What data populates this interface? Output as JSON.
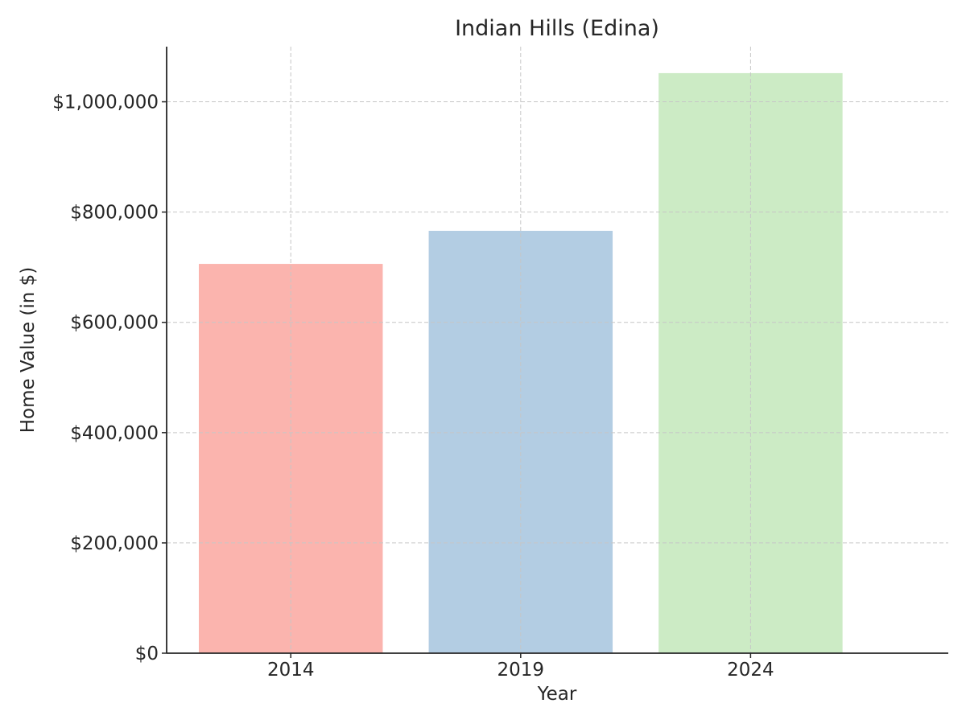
{
  "chart_data": {
    "type": "bar",
    "title": "Indian Hills (Edina)",
    "xlabel": "Year",
    "ylabel": "Home Value (in $)",
    "categories": [
      "2014",
      "2019",
      "2024"
    ],
    "values": [
      706000,
      766000,
      1052000
    ],
    "colors": [
      "#fbb4ae",
      "#b3cde3",
      "#ccebc5"
    ],
    "ylim": [
      0,
      1100000
    ],
    "yticks": [
      0,
      200000,
      400000,
      600000,
      800000,
      1000000
    ],
    "ytick_labels": [
      "$0",
      "$200,000",
      "$400,000",
      "$600,000",
      "$800,000",
      "$1,000,000"
    ],
    "grid": true,
    "legend": "none"
  }
}
